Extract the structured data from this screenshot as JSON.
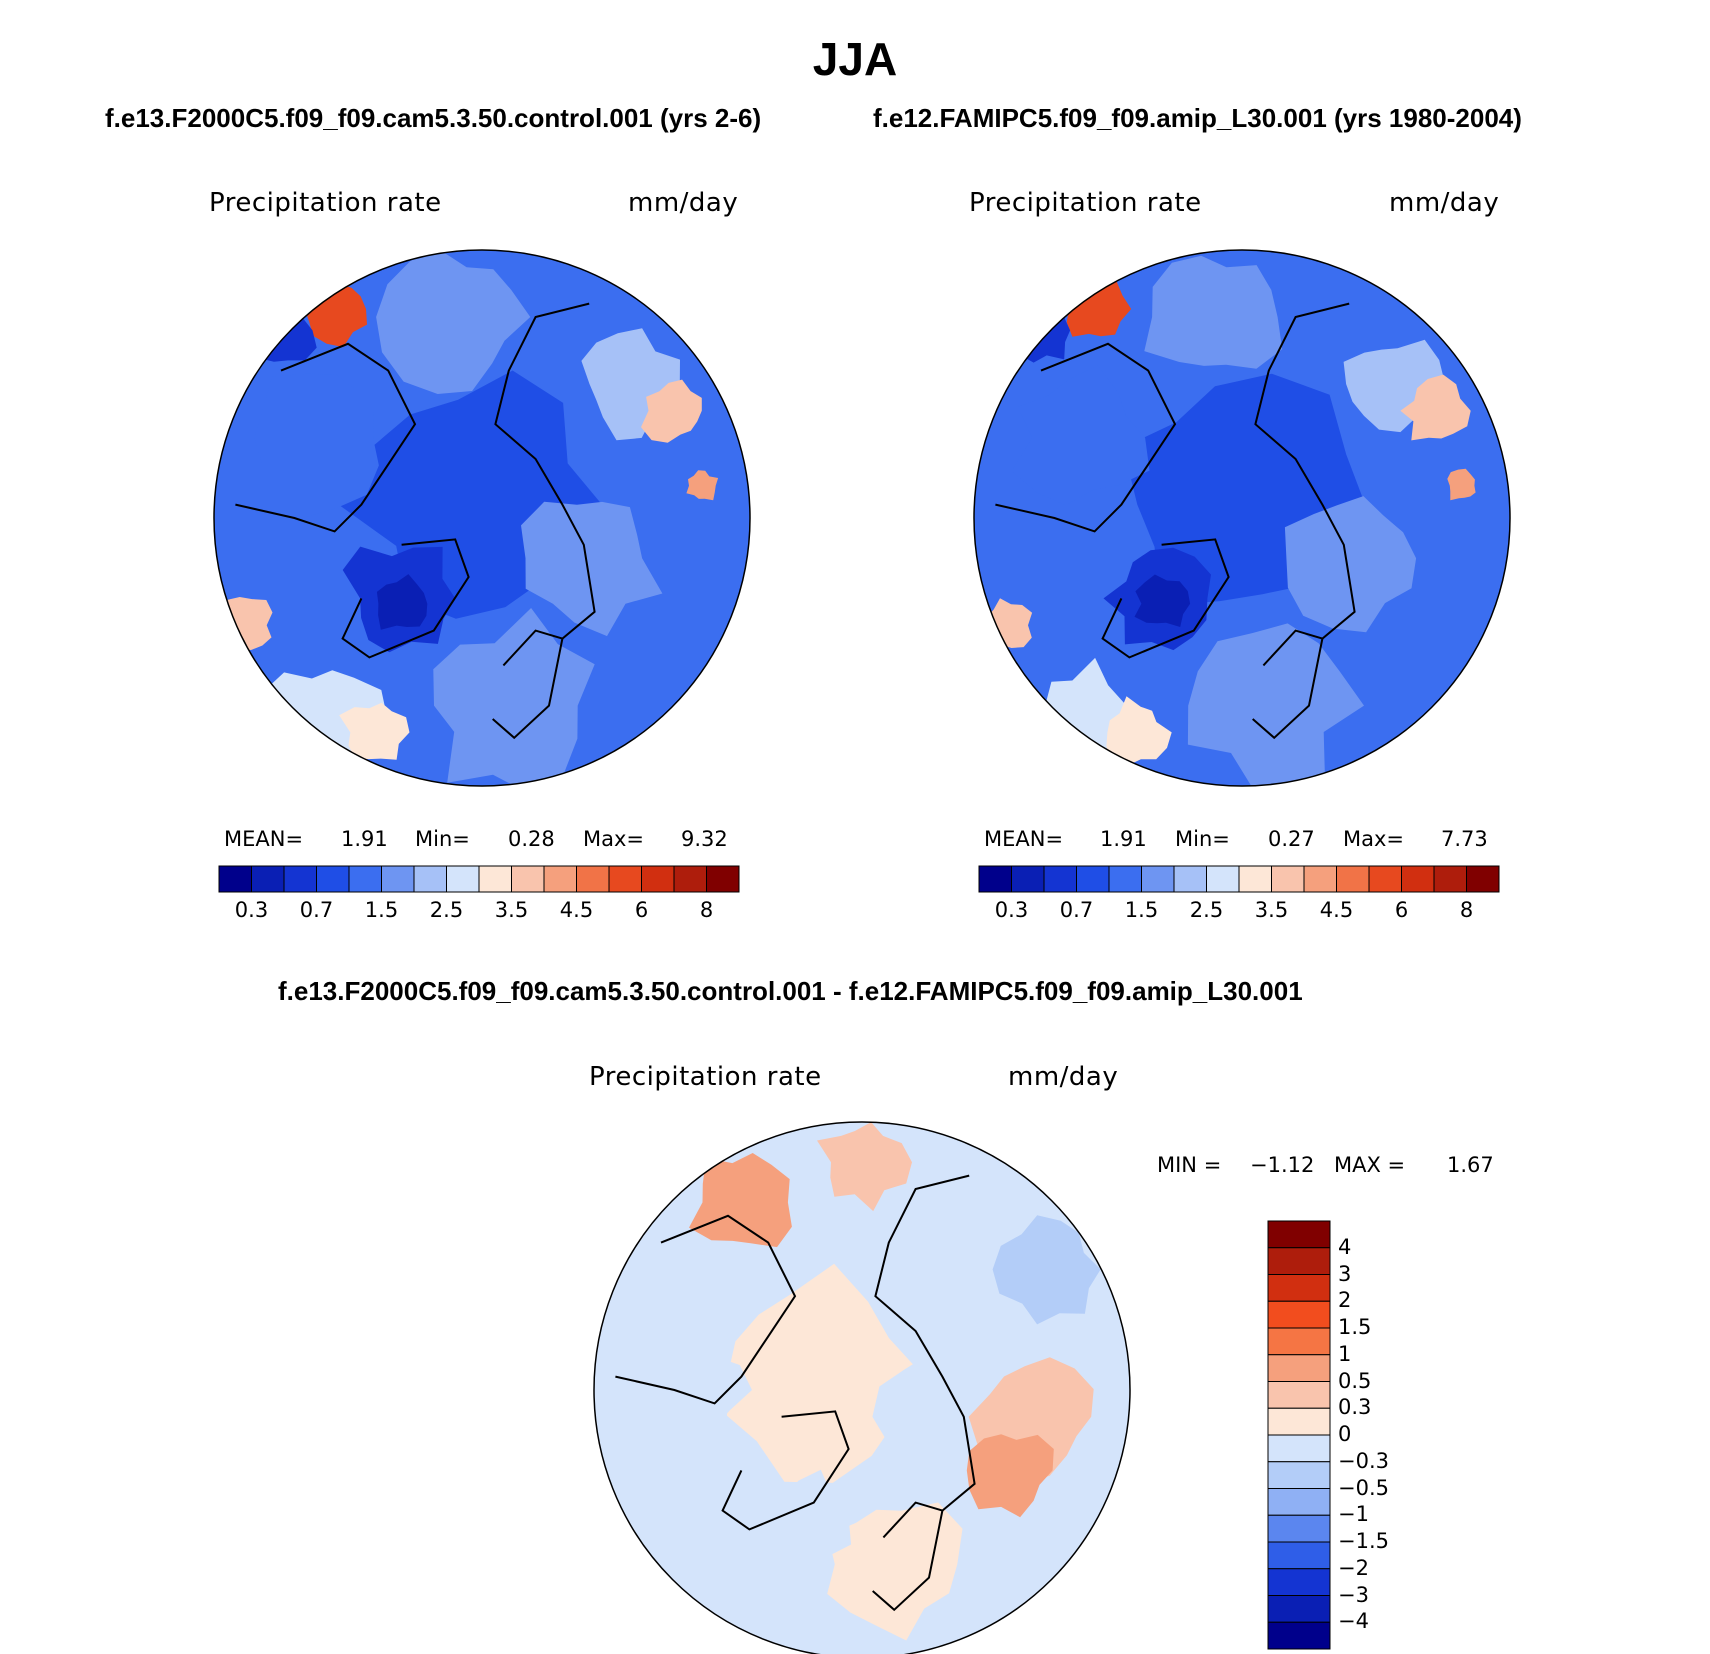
{
  "figure": {
    "season": "JJA",
    "test_case": "f.e13.F2000C5.f09_f09.cam5.3.50.control.001 (yrs 2-6)",
    "control_case": "f.e12.FAMIPC5.f09_f09.amip_L30.001 (yrs 1980-2004)",
    "diff_title": "f.e13.F2000C5.f09_f09.cam5.3.50.control.001 - f.e12.FAMIPC5.f09_f09.amip_L30.001"
  },
  "panels": [
    {
      "variable": "Precipitation rate",
      "units": "mm/day",
      "mean_label": "MEAN=",
      "mean": "1.91",
      "min_label": "Min=",
      "min": "0.28",
      "max_label": "Max=",
      "max": "9.32"
    },
    {
      "variable": "Precipitation rate",
      "units": "mm/day",
      "mean_label": "MEAN=",
      "mean": "1.91",
      "min_label": "Min=",
      "min": "0.27",
      "max_label": "Max=",
      "max": "7.73"
    }
  ],
  "diff_panel": {
    "variable": "Precipitation rate",
    "units": "mm/day",
    "min_label": "MIN =",
    "min": "−1.12",
    "max_label": "MAX =",
    "max": "1.67"
  },
  "abs_colorbar": {
    "tick_labels": [
      "0.3",
      "0.7",
      "1.5",
      "2.5",
      "3.5",
      "4.5",
      "6",
      "8"
    ],
    "colors": [
      "#00008b",
      "#0a1fb4",
      "#1434d2",
      "#1f4ee6",
      "#3b6ef0",
      "#6e95f2",
      "#a6c1f7",
      "#d4e4fb",
      "#fde7d7",
      "#f9c4ad",
      "#f5a07d",
      "#f17347",
      "#e7491f",
      "#d12f10",
      "#ae1d0c",
      "#800000"
    ]
  },
  "diff_colorbar": {
    "tick_labels": [
      "4",
      "3",
      "2",
      "1.5",
      "1",
      "0.5",
      "0.3",
      "0",
      "−0.3",
      "−0.5",
      "−1",
      "−1.5",
      "−2",
      "−3",
      "−4"
    ],
    "colors": [
      "#800000",
      "#ae1d0c",
      "#d12f10",
      "#f24d1e",
      "#f57544",
      "#f5a07d",
      "#f9c4ad",
      "#fde7d7",
      "#d4e4fb",
      "#b3cdf8",
      "#8fb0f4",
      "#5b86ef",
      "#2f5ee8",
      "#1434d2",
      "#0a1fb4",
      "#00008b"
    ]
  }
}
